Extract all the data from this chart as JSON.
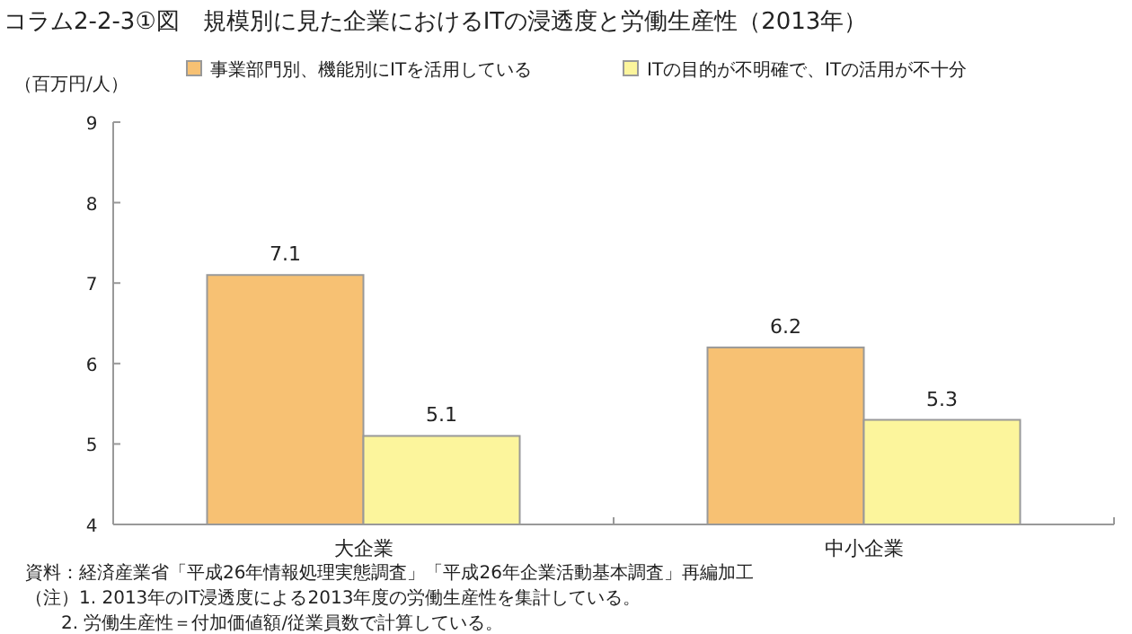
{
  "chart_data": {
    "type": "bar",
    "title": "コラム2-2-3①図　規模別に見た企業におけるITの浸透度と労働生産性（2013年）",
    "ylabel": "（百万円/人）",
    "categories": [
      "大企業",
      "中小企業"
    ],
    "series": [
      {
        "name": "事業部門別、機能別にITを活用している",
        "color": "#f7c173",
        "values": [
          7.1,
          6.2
        ]
      },
      {
        "name": "ITの目的が不明確で、ITの活用が不十分",
        "color": "#fcf59c",
        "values": [
          5.1,
          5.3
        ]
      }
    ],
    "ylim": [
      4,
      9
    ],
    "yticks": [
      4,
      5,
      6,
      7,
      8,
      9
    ],
    "data_labels": true,
    "legend": "top",
    "grid": false,
    "annotations": [
      "資料：経済産業省「平成26年情報処理実態調査」「平成26年企業活動基本調査」再編加工",
      "（注）1. 2013年のIT浸透度による2013年度の労働生産性を集計している。",
      "2. 労働生産性＝付加価値額/従業員数で計算している。"
    ]
  }
}
